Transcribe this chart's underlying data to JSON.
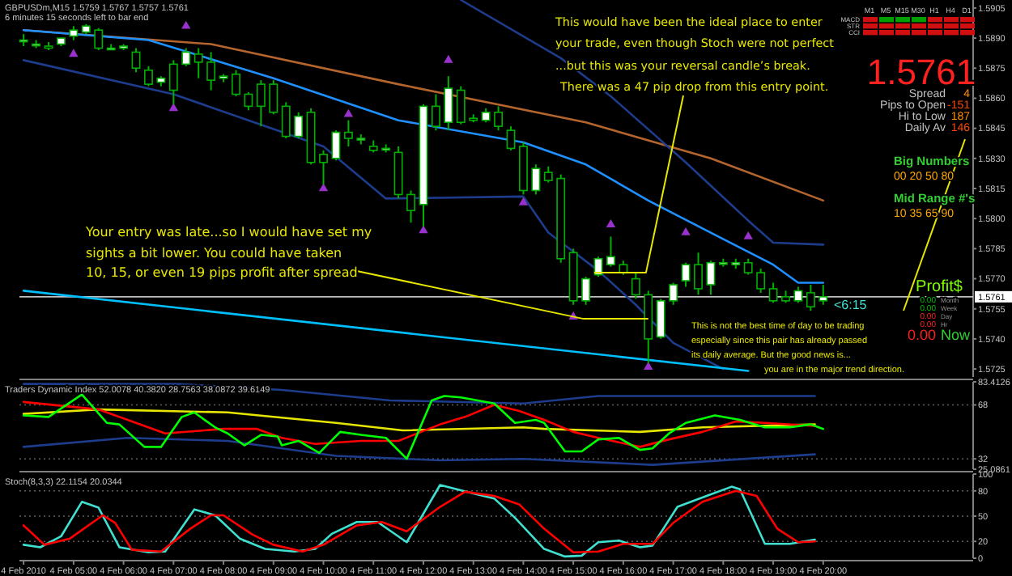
{
  "chart_data": [
    {
      "type": "candlestick",
      "title": "GBPUSDm,M15  1.5759 1.5767 1.5757 1.5761",
      "subtitle": "6 minutes 15 seconds left to bar end",
      "x": [
        "2010-02-04T04:00",
        "2010-02-04T04:15",
        "2010-02-04T04:30",
        "2010-02-04T04:45",
        "2010-02-04T05:00",
        "2010-02-04T05:15",
        "2010-02-04T05:30",
        "2010-02-04T05:45",
        "2010-02-04T06:00",
        "2010-02-04T06:15",
        "2010-02-04T06:30",
        "2010-02-04T06:45",
        "2010-02-04T07:00",
        "2010-02-04T07:15",
        "2010-02-04T07:30",
        "2010-02-04T07:45",
        "2010-02-04T08:00",
        "2010-02-04T08:15",
        "2010-02-04T08:30",
        "2010-02-04T08:45",
        "2010-02-04T09:00",
        "2010-02-04T09:15",
        "2010-02-04T09:30",
        "2010-02-04T09:45",
        "2010-02-04T10:00",
        "2010-02-04T10:15",
        "2010-02-04T10:30",
        "2010-02-04T10:45",
        "2010-02-04T11:00",
        "2010-02-04T11:15",
        "2010-02-04T11:30",
        "2010-02-04T11:45",
        "2010-02-04T12:00",
        "2010-02-04T12:15",
        "2010-02-04T12:30",
        "2010-02-04T12:45",
        "2010-02-04T13:00",
        "2010-02-04T13:15",
        "2010-02-04T13:30",
        "2010-02-04T13:45",
        "2010-02-04T14:00",
        "2010-02-04T14:15",
        "2010-02-04T14:30",
        "2010-02-04T14:45",
        "2010-02-04T15:00",
        "2010-02-04T15:15",
        "2010-02-04T15:30",
        "2010-02-04T15:45",
        "2010-02-04T16:00",
        "2010-02-04T16:15",
        "2010-02-04T16:30",
        "2010-02-04T16:45",
        "2010-02-04T17:00",
        "2010-02-04T17:15",
        "2010-02-04T17:30",
        "2010-02-04T17:45",
        "2010-02-04T18:00",
        "2010-02-04T18:15",
        "2010-02-04T18:30",
        "2010-02-04T18:45",
        "2010-02-04T19:00",
        "2010-02-04T19:15",
        "2010-02-04T19:30",
        "2010-02-04T19:45",
        "2010-02-04T20:00"
      ],
      "ohlc": [
        [
          1.5889,
          1.5892,
          1.5886,
          1.5889
        ],
        [
          1.5887,
          1.5889,
          1.5885,
          1.5887
        ],
        [
          1.5886,
          1.5888,
          1.5884,
          1.5885
        ],
        [
          1.5887,
          1.589,
          1.5886,
          1.589
        ],
        [
          1.5891,
          1.5896,
          1.5889,
          1.5894
        ],
        [
          1.5893,
          1.5897,
          1.5892,
          1.5896
        ],
        [
          1.5894,
          1.5895,
          1.5884,
          1.5885
        ],
        [
          1.5885,
          1.5887,
          1.5884,
          1.5885
        ],
        [
          1.5885,
          1.5887,
          1.5884,
          1.5886
        ],
        [
          1.5883,
          1.5885,
          1.5873,
          1.5875
        ],
        [
          1.5874,
          1.5876,
          1.5866,
          1.5867
        ],
        [
          1.5868,
          1.5871,
          1.5866,
          1.587
        ],
        [
          1.5877,
          1.5879,
          1.5857,
          1.5864
        ],
        [
          1.5877,
          1.5885,
          1.5876,
          1.5883
        ],
        [
          1.5882,
          1.5885,
          1.587,
          1.5878
        ],
        [
          1.5878,
          1.5883,
          1.5864,
          1.5869
        ],
        [
          1.587,
          1.5872,
          1.5868,
          1.5871
        ],
        [
          1.5872,
          1.5874,
          1.5861,
          1.5862
        ],
        [
          1.5862,
          1.5863,
          1.5854,
          1.5856
        ],
        [
          1.5867,
          1.5869,
          1.5846,
          1.5856
        ],
        [
          1.5867,
          1.5869,
          1.5852,
          1.5853
        ],
        [
          1.5856,
          1.5858,
          1.584,
          1.5841
        ],
        [
          1.5841,
          1.5853,
          1.584,
          1.5851
        ],
        [
          1.5853,
          1.5855,
          1.5827,
          1.5828
        ],
        [
          1.5832,
          1.5834,
          1.5817,
          1.5828
        ],
        [
          1.583,
          1.5844,
          1.5829,
          1.5843
        ],
        [
          1.5843,
          1.5849,
          1.5836,
          1.584
        ],
        [
          1.584,
          1.5842,
          1.5837,
          1.584
        ],
        [
          1.5836,
          1.5839,
          1.5833,
          1.5834
        ],
        [
          1.5835,
          1.5837,
          1.5833,
          1.5835
        ],
        [
          1.5833,
          1.5836,
          1.581,
          1.5812
        ],
        [
          1.5812,
          1.5814,
          1.5798,
          1.5804
        ],
        [
          1.5807,
          1.5857,
          1.5796,
          1.5856
        ],
        [
          1.5856,
          1.5862,
          1.5844,
          1.5846
        ],
        [
          1.5848,
          1.5871,
          1.5844,
          1.5865
        ],
        [
          1.5864,
          1.5866,
          1.5847,
          1.5848
        ],
        [
          1.585,
          1.5852,
          1.5848,
          1.5849
        ],
        [
          1.5849,
          1.5855,
          1.5848,
          1.5853
        ],
        [
          1.5853,
          1.5856,
          1.5844,
          1.5846
        ],
        [
          1.5844,
          1.5846,
          1.5834,
          1.5835
        ],
        [
          1.5836,
          1.5838,
          1.5812,
          1.5814
        ],
        [
          1.5814,
          1.5827,
          1.5812,
          1.5825
        ],
        [
          1.5823,
          1.5826,
          1.5818,
          1.5819
        ],
        [
          1.582,
          1.5822,
          1.5778,
          1.578
        ],
        [
          1.5783,
          1.5785,
          1.5757,
          1.5759
        ],
        [
          1.5759,
          1.5771,
          1.5757,
          1.577
        ],
        [
          1.5772,
          1.5781,
          1.5771,
          1.578
        ],
        [
          1.5777,
          1.5791,
          1.5776,
          1.5781
        ],
        [
          1.5777,
          1.5779,
          1.5772,
          1.5773
        ],
        [
          1.577,
          1.5773,
          1.576,
          1.5762
        ],
        [
          1.5762,
          1.5764,
          1.5728,
          1.574
        ],
        [
          1.5741,
          1.576,
          1.574,
          1.5759
        ],
        [
          1.5759,
          1.5768,
          1.5757,
          1.5767
        ],
        [
          1.5769,
          1.5778,
          1.5766,
          1.5777
        ],
        [
          1.5777,
          1.5783,
          1.5762,
          1.5765
        ],
        [
          1.5767,
          1.5779,
          1.5762,
          1.5778
        ],
        [
          1.5778,
          1.578,
          1.5776,
          1.5778
        ],
        [
          1.5777,
          1.578,
          1.5775,
          1.5778
        ],
        [
          1.5778,
          1.578,
          1.5772,
          1.5773
        ],
        [
          1.5773,
          1.5775,
          1.5763,
          1.5765
        ],
        [
          1.5765,
          1.5768,
          1.5758,
          1.5759
        ],
        [
          1.5761,
          1.5764,
          1.5758,
          1.5759
        ],
        [
          1.5759,
          1.5766,
          1.5758,
          1.5764
        ],
        [
          1.5763,
          1.5767,
          1.5754,
          1.5756
        ],
        [
          1.5759,
          1.5767,
          1.5757,
          1.5761
        ]
      ],
      "series": [
        {
          "type": "line",
          "color": "#b4642d",
          "x": [
            "2010-02-04T04:00",
            "2010-02-04T07:45",
            "2010-02-04T11:30",
            "2010-02-04T15:15",
            "2010-02-04T17:45",
            "2010-02-04T20:00"
          ],
          "values": [
            1.5894,
            1.5887,
            1.5867,
            1.5848,
            1.583,
            1.5809
          ]
        },
        {
          "type": "line",
          "color": "#1e3c8c",
          "x": [
            "2010-02-04T12:45",
            "2010-02-04T14:45",
            "2010-02-04T15:45",
            "2010-02-04T17:15",
            "2010-02-04T18:30",
            "2010-02-04T19:00",
            "2010-02-04T20:00"
          ],
          "values": [
            1.5909,
            1.588,
            1.5861,
            1.5828,
            1.5799,
            1.5788,
            1.5787
          ]
        },
        {
          "type": "line",
          "color": "#1e3c8c",
          "x": [
            "2010-02-04T04:00",
            "2010-02-04T07:00",
            "2010-02-04T10:00",
            "2010-02-04T11:15",
            "2010-02-04T14:00",
            "2010-02-04T14:30",
            "2010-02-04T15:30",
            "2010-02-04T16:15",
            "2010-02-04T17:00",
            "2010-02-04T18:00"
          ],
          "values": [
            1.5879,
            1.5862,
            1.5836,
            1.581,
            1.5811,
            1.5793,
            1.5774,
            1.5757,
            1.5738,
            1.5725
          ]
        },
        {
          "type": "line",
          "color": "#1e90ff",
          "x": [
            "2010-02-04T04:00",
            "2010-02-04T06:30",
            "2010-02-04T09:00",
            "2010-02-04T11:30",
            "2010-02-04T14:00",
            "2010-02-04T15:15",
            "2010-02-04T16:30",
            "2010-02-04T17:45",
            "2010-02-04T19:00",
            "2010-02-04T19:30",
            "2010-02-04T20:00"
          ],
          "values": [
            1.5894,
            1.5889,
            1.587,
            1.5849,
            1.5838,
            1.5827,
            1.5809,
            1.5793,
            1.5777,
            1.5768,
            1.5768
          ]
        },
        {
          "type": "line",
          "color": "#00bfff",
          "x": [
            "2010-02-04T04:00",
            "2010-02-04T18:30"
          ],
          "values": [
            1.5764,
            1.5724
          ]
        },
        {
          "type": "scatter",
          "color": "#9932cc",
          "marker": "triangle",
          "x": [
            "2010-02-04T07:15",
            "2010-02-04T10:30",
            "2010-02-04T12:30",
            "2010-02-04T15:45",
            "2010-02-04T17:15",
            "2010-02-04T18:30"
          ],
          "values": [
            1.5896,
            1.5852,
            1.5879,
            1.5797,
            1.5793,
            1.5791
          ]
        },
        {
          "type": "scatter",
          "color": "#9932cc",
          "marker": "triangle",
          "x": [
            "2010-02-04T05:00",
            "2010-02-04T07:00",
            "2010-02-04T10:00",
            "2010-02-04T12:00",
            "2010-02-04T14:00",
            "2010-02-04T15:00",
            "2010-02-04T16:30"
          ],
          "values": [
            1.5882,
            1.5855,
            1.5815,
            1.5794,
            1.5808,
            1.5751,
            1.5726
          ]
        }
      ],
      "xlim": [
        "2010-02-04T03:55",
        "2010-02-04T23:00"
      ],
      "ylim": [
        1.5721,
        1.5909
      ],
      "yticks": [
        {
          "value": 1.5725,
          "label": "1.5725"
        },
        {
          "value": 1.574,
          "label": "1.5740"
        },
        {
          "value": 1.5755,
          "label": "1.5755"
        },
        {
          "value": 1.577,
          "label": "1.5770"
        },
        {
          "value": 1.5785,
          "label": "1.5785"
        },
        {
          "value": 1.58,
          "label": "1.5800"
        },
        {
          "value": 1.5815,
          "label": "1.5815"
        },
        {
          "value": 1.583,
          "label": "1.5830"
        },
        {
          "value": 1.5845,
          "label": "1.5845"
        },
        {
          "value": 1.586,
          "label": "1.5860"
        },
        {
          "value": 1.5875,
          "label": "1.5875"
        },
        {
          "value": 1.589,
          "label": "1.5890"
        },
        {
          "value": 1.5905,
          "label": "1.5905"
        }
      ],
      "tick_labels": "y",
      "ref_lines": [
        {
          "axis": "y",
          "value": 1.5761,
          "label": "1.5761",
          "color": "#c0c0c0"
        }
      ],
      "annotations": [
        "This would have been the ideal place to enter",
        "your trade, even though Stoch were not perfect",
        "...but this was your reversal candle’s break.",
        {
          "text": "There was a 47 pip drop from this entry point.",
          "x": "2010-02-04T15:25",
          "y": 1.5773
        },
        "Your entry was late...so I would have set my",
        "sights a bit lower. You could have taken",
        {
          "text": "10, 15, or even 19 pips profit after spread",
          "x": "2010-02-04T16:30",
          "y": 1.575
        },
        "This is not the best time of day to be trading",
        "especially since this pair has already passed",
        "its daily average. But the good news is...",
        "you are in the major trend direction.",
        "<6:15",
        "1.5761",
        "Spread",
        "4",
        "Pips to Open",
        "-151",
        "Hi to Low",
        "187",
        "Daily Av",
        "146",
        "Big Numbers",
        "00 20 50 80",
        "Mid Range #'s",
        "10 35 65 90",
        "Profit$",
        "0.00",
        "Month",
        "0.00",
        "Week",
        "0.00",
        "Day",
        "0.00",
        "Hr",
        "0.00",
        "Now",
        "M1",
        "M5",
        "M15",
        "M30",
        "H1",
        "H4",
        "D1",
        "MACD",
        "STR",
        "CCI"
      ]
    },
    {
      "type": "line",
      "title": "Traders Dynamic Index 52.0078 40.3820 28.7563 38.0872 39.6149",
      "series": [
        {
          "color": "#1e3c8c",
          "x": [
            "2010-02-04T04:00",
            "2010-02-04T07:05",
            "2010-02-04T09:10",
            "2010-02-04T11:20",
            "2010-02-04T14:00",
            "2010-02-04T15:30",
            "2010-02-04T19:50"
          ],
          "values": [
            82,
            82,
            78,
            71,
            69,
            74,
            74
          ]
        },
        {
          "color": "#1e3c8c",
          "x": [
            "2010-02-04T04:00",
            "2010-02-04T06:05",
            "2010-02-04T08:05",
            "2010-02-04T10:15",
            "2010-02-04T12:20",
            "2010-02-04T14:00",
            "2010-02-04T16:35",
            "2010-02-04T19:50"
          ],
          "values": [
            40,
            46,
            44,
            34,
            31,
            32,
            28,
            35
          ]
        },
        {
          "color": "#e6e600",
          "x": [
            "2010-02-04T04:00",
            "2010-02-04T05:30",
            "2010-02-04T08:05",
            "2010-02-04T10:15",
            "2010-02-04T11:35",
            "2010-02-04T14:00",
            "2010-02-04T14:25",
            "2010-02-04T16:20",
            "2010-02-04T17:35",
            "2010-02-04T19:50"
          ],
          "values": [
            62,
            65,
            63,
            56,
            51,
            53,
            52,
            50,
            53,
            55
          ]
        },
        {
          "color": "#ff0000",
          "x": [
            "2010-02-04T04:00",
            "2010-02-04T05:30",
            "2010-02-04T06:50",
            "2010-02-04T08:00",
            "2010-02-04T08:40",
            "2010-02-04T09:10",
            "2010-02-04T09:50",
            "2010-02-04T10:45",
            "2010-02-04T11:30",
            "2010-02-04T12:20",
            "2010-02-04T12:50",
            "2010-02-04T13:25",
            "2010-02-04T13:55",
            "2010-02-04T14:25",
            "2010-02-04T15:00",
            "2010-02-04T15:30",
            "2010-02-04T16:20",
            "2010-02-04T16:55",
            "2010-02-04T17:35",
            "2010-02-04T18:15",
            "2010-02-04T18:50",
            "2010-02-04T19:50"
          ],
          "values": [
            70,
            65,
            49,
            52,
            52,
            46,
            42,
            44,
            44,
            55,
            60,
            68,
            64,
            58,
            50,
            46,
            40,
            45,
            50,
            57,
            56,
            54
          ]
        },
        {
          "color": "#00ff00",
          "x": [
            "2010-02-04T04:00",
            "2010-02-04T04:30",
            "2010-02-04T05:10",
            "2010-02-04T05:40",
            "2010-02-04T05:55",
            "2010-02-04T06:25",
            "2010-02-04T06:45",
            "2010-02-04T07:10",
            "2010-02-04T07:25",
            "2010-02-04T07:50",
            "2010-02-04T08:05",
            "2010-02-04T08:25",
            "2010-02-04T08:45",
            "2010-02-04T09:05",
            "2010-02-04T09:10",
            "2010-02-04T09:30",
            "2010-02-04T09:55",
            "2010-02-04T10:20",
            "2010-02-04T10:45",
            "2010-02-04T11:15",
            "2010-02-04T11:40",
            "2010-02-04T12:10",
            "2010-02-04T12:25",
            "2010-02-04T12:45",
            "2010-02-04T13:25",
            "2010-02-04T13:50",
            "2010-02-04T14:15",
            "2010-02-04T14:25",
            "2010-02-04T14:50",
            "2010-02-04T15:10",
            "2010-02-04T15:30",
            "2010-02-04T15:55",
            "2010-02-04T16:20",
            "2010-02-04T16:35",
            "2010-02-04T16:55",
            "2010-02-04T17:15",
            "2010-02-04T17:50",
            "2010-02-04T18:20",
            "2010-02-04T18:50",
            "2010-02-04T19:20",
            "2010-02-04T19:45",
            "2010-02-04T20:00"
          ],
          "values": [
            61,
            60,
            75,
            56,
            55,
            40,
            40,
            60,
            63,
            53,
            49,
            41,
            48,
            47,
            41,
            44,
            36,
            50,
            48,
            46,
            32,
            71,
            74,
            73,
            69,
            56,
            58,
            56,
            37,
            37,
            45,
            46,
            38,
            39,
            49,
            56,
            61,
            58,
            53,
            53,
            55,
            52
          ]
        }
      ],
      "xlim": [
        "2010-02-04T03:55",
        "2010-02-04T23:00"
      ],
      "ylim": [
        25.0861,
        83.4126
      ],
      "yticks": [
        83.4126,
        68,
        32,
        25.0861
      ],
      "tick_labels": "y",
      "ref_lines": [
        {
          "axis": "y",
          "value": 68,
          "line_style": "dotted",
          "color": "#606060"
        },
        {
          "axis": "y",
          "value": 32,
          "line_style": "dotted",
          "color": "#606060"
        }
      ]
    },
    {
      "type": "line",
      "title": "Stoch(8,3,3) 22.1154 20.0344",
      "series": [
        {
          "color": "#40e0d0",
          "x": [
            "2010-02-04T04:00",
            "2010-02-04T04:20",
            "2010-02-04T04:45",
            "2010-02-04T05:10",
            "2010-02-04T05:30",
            "2010-02-04T05:55",
            "2010-02-04T06:30",
            "2010-02-04T06:50",
            "2010-02-04T07:25",
            "2010-02-04T07:50",
            "2010-02-04T08:20",
            "2010-02-04T08:50",
            "2010-02-04T09:25",
            "2010-02-04T09:50",
            "2010-02-04T10:10",
            "2010-02-04T10:40",
            "2010-02-04T11:05",
            "2010-02-04T11:40",
            "2010-02-04T12:20",
            "2010-02-04T13:00",
            "2010-02-04T13:25",
            "2010-02-04T13:50",
            "2010-02-04T14:25",
            "2010-02-04T14:50",
            "2010-02-04T15:10",
            "2010-02-04T15:30",
            "2010-02-04T15:55",
            "2010-02-04T16:20",
            "2010-02-04T16:35",
            "2010-02-04T17:05",
            "2010-02-04T17:40",
            "2010-02-04T18:10",
            "2010-02-04T18:20",
            "2010-02-04T18:50",
            "2010-02-04T19:20",
            "2010-02-04T19:50"
          ],
          "values": [
            16,
            13,
            26,
            67,
            60,
            13,
            7,
            8,
            58,
            51,
            23,
            11,
            8,
            11,
            29,
            43,
            43,
            19,
            87,
            77,
            71,
            48,
            11,
            2,
            3,
            19,
            21,
            13,
            15,
            61,
            74,
            85,
            82,
            17,
            17,
            22
          ]
        },
        {
          "color": "#ff0000",
          "x": [
            "2010-02-04T04:00",
            "2010-02-04T04:25",
            "2010-02-04T04:55",
            "2010-02-04T05:35",
            "2010-02-04T05:50",
            "2010-02-04T06:10",
            "2010-02-04T06:45",
            "2010-02-04T07:20",
            "2010-02-04T07:45",
            "2010-02-04T08:00",
            "2010-02-04T08:35",
            "2010-02-04T09:00",
            "2010-02-04T09:35",
            "2010-02-04T10:00",
            "2010-02-04T10:40",
            "2010-02-04T11:10",
            "2010-02-04T11:40",
            "2010-02-04T12:20",
            "2010-02-04T12:50",
            "2010-02-04T13:25",
            "2010-02-04T13:55",
            "2010-02-04T14:25",
            "2010-02-04T15:00",
            "2010-02-04T15:30",
            "2010-02-04T16:00",
            "2010-02-04T16:35",
            "2010-02-04T17:00",
            "2010-02-04T17:35",
            "2010-02-04T18:15",
            "2010-02-04T18:40",
            "2010-02-04T19:05",
            "2010-02-04T19:30",
            "2010-02-04T19:50"
          ],
          "values": [
            39,
            16,
            23,
            51,
            42,
            10,
            8,
            35,
            51,
            51,
            28,
            16,
            8,
            16,
            39,
            43,
            32,
            61,
            79,
            74,
            64,
            35,
            7,
            8,
            17,
            17,
            42,
            67,
            80,
            74,
            35,
            19,
            20
          ]
        }
      ],
      "xlim": [
        "2010-02-04T03:55",
        "2010-02-04T23:00"
      ],
      "ylim": [
        0,
        100
      ],
      "yticks": [
        0,
        20,
        50,
        80,
        100
      ],
      "xticks": [
        {
          "value": "2010-02-04T04:00",
          "label": "4 Feb 2010"
        },
        {
          "value": "2010-02-04T05:00",
          "label": "4 Feb 05:00"
        },
        {
          "value": "2010-02-04T06:00",
          "label": "4 Feb 06:00"
        },
        {
          "value": "2010-02-04T07:00",
          "label": "4 Feb 07:00"
        },
        {
          "value": "2010-02-04T08:00",
          "label": "4 Feb 08:00"
        },
        {
          "value": "2010-02-04T09:00",
          "label": "4 Feb 09:00"
        },
        {
          "value": "2010-02-04T10:00",
          "label": "4 Feb 10:00"
        },
        {
          "value": "2010-02-04T11:00",
          "label": "4 Feb 11:00"
        },
        {
          "value": "2010-02-04T12:00",
          "label": "4 Feb 12:00"
        },
        {
          "value": "2010-02-04T13:00",
          "label": "4 Feb 13:00"
        },
        {
          "value": "2010-02-04T14:00",
          "label": "4 Feb 14:00"
        },
        {
          "value": "2010-02-04T15:00",
          "label": "4 Feb 15:00"
        },
        {
          "value": "2010-02-04T16:00",
          "label": "4 Feb 16:00"
        },
        {
          "value": "2010-02-04T17:00",
          "label": "4 Feb 17:00"
        },
        {
          "value": "2010-02-04T18:00",
          "label": "4 Feb 18:00"
        },
        {
          "value": "2010-02-04T19:00",
          "label": "4 Feb 19:00"
        },
        {
          "value": "2010-02-04T20:00",
          "label": "4 Feb 20:00"
        }
      ],
      "ref_lines": [
        {
          "axis": "y",
          "value": 80,
          "line_style": "dotted",
          "color": "#606060"
        },
        {
          "axis": "y",
          "value": 50,
          "line_style": "dotted",
          "color": "#606060"
        },
        {
          "axis": "y",
          "value": 20,
          "line_style": "dotted",
          "color": "#606060"
        }
      ]
    }
  ]
}
